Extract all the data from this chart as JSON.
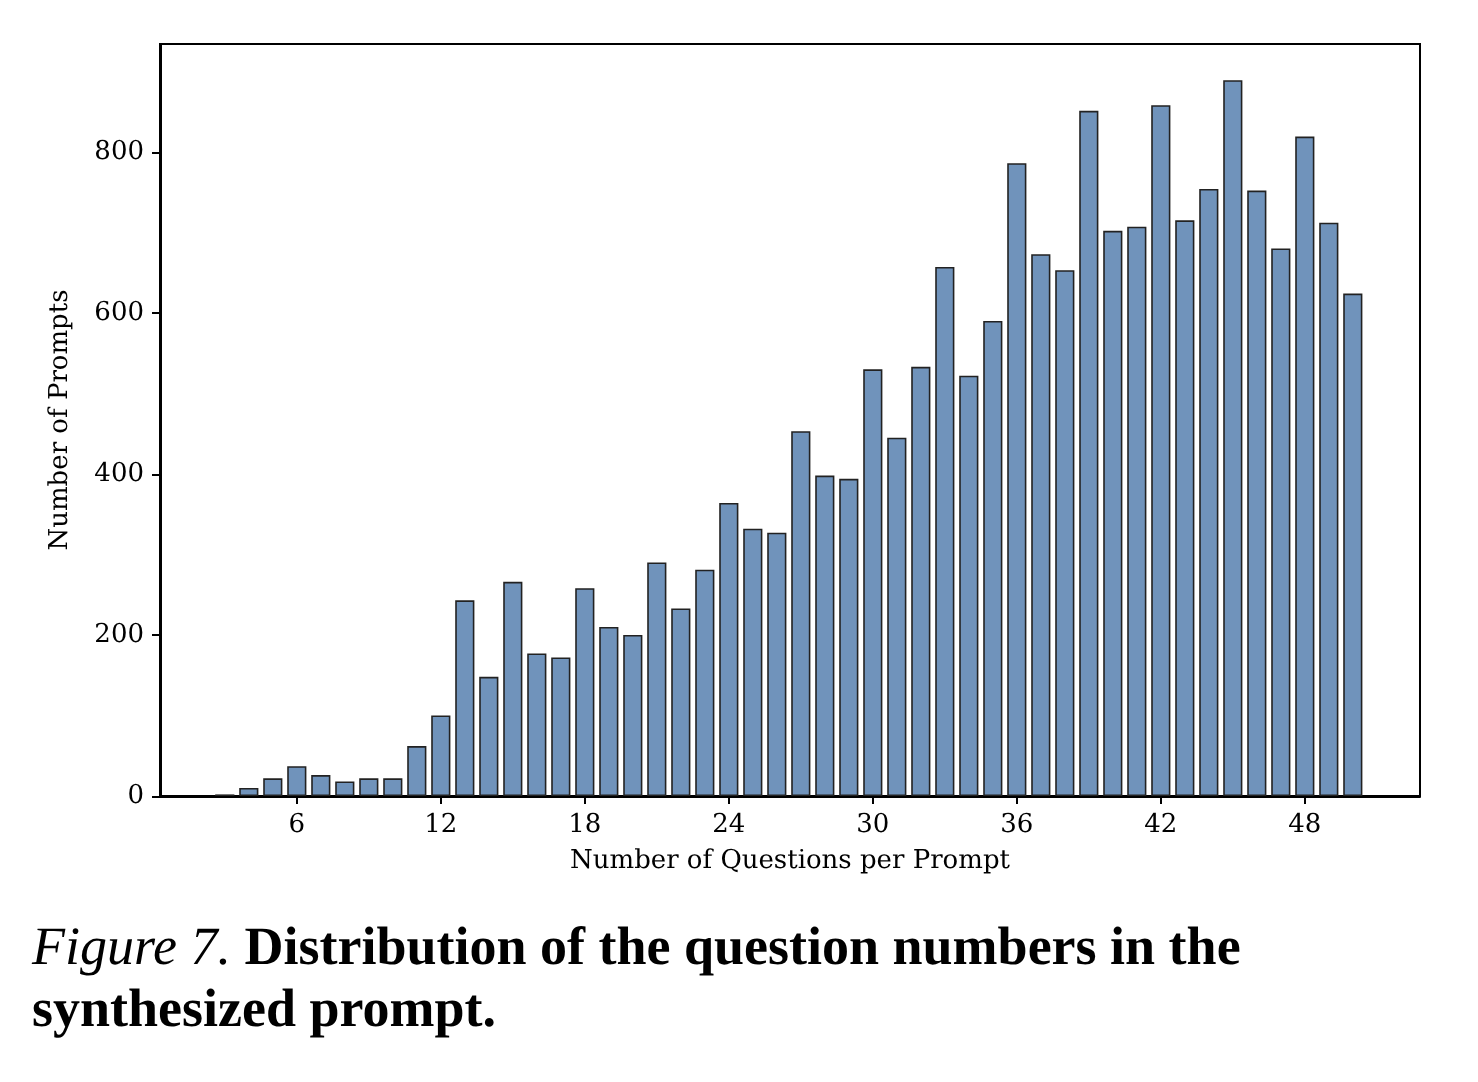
{
  "chart_data": {
    "type": "bar",
    "xlabel": "Number of Questions per Prompt",
    "ylabel": "Number of Prompts",
    "annotations": [
      "Figure 7. Distribution of the question numbers in the synthesized prompt."
    ],
    "x": [
      3,
      4,
      5,
      6,
      7,
      8,
      9,
      10,
      11,
      12,
      13,
      14,
      15,
      16,
      17,
      18,
      19,
      20,
      21,
      22,
      23,
      24,
      25,
      26,
      27,
      28,
      29,
      30,
      31,
      32,
      33,
      34,
      35,
      36,
      37,
      38,
      39,
      40,
      41,
      42,
      43,
      44,
      45,
      46,
      47,
      48,
      49,
      50
    ],
    "values": [
      2,
      10,
      22,
      37,
      26,
      18,
      22,
      22,
      62,
      100,
      243,
      148,
      266,
      177,
      172,
      258,
      210,
      200,
      290,
      233,
      281,
      364,
      332,
      327,
      453,
      398,
      394,
      530,
      445,
      533,
      657,
      522,
      590,
      786,
      673,
      653,
      851,
      702,
      707,
      858,
      715,
      754,
      889,
      752,
      680,
      819,
      712,
      624
    ],
    "color": "#7093bb",
    "xlim": [
      0.3,
      52.8
    ],
    "xticks": [
      6,
      12,
      18,
      24,
      30,
      36,
      42,
      48
    ],
    "ylim": [
      0,
      934
    ],
    "yticks": [
      0,
      200,
      400,
      600,
      800
    ],
    "grid": false
  }
}
